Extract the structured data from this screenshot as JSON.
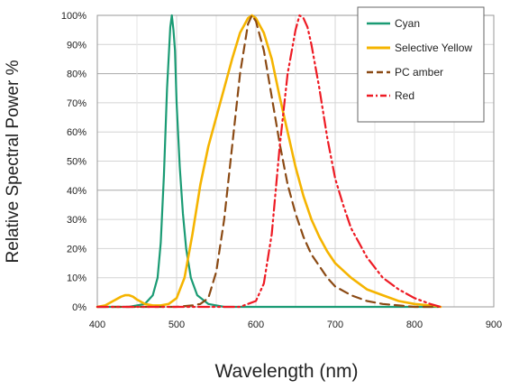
{
  "chart_data": {
    "type": "line",
    "xlabel": "Wavelength (nm)",
    "ylabel": "Relative Spectral Power %",
    "xlim": [
      400,
      900
    ],
    "ylim": [
      0,
      100
    ],
    "xticks": [
      400,
      500,
      600,
      700,
      800,
      900
    ],
    "yticks": [
      0,
      10,
      20,
      30,
      40,
      50,
      60,
      70,
      80,
      90,
      100
    ],
    "y_tick_format": "percent",
    "grid": true,
    "legend_position": "top-right",
    "series": [
      {
        "name": "Cyan",
        "color": "#1a9b74",
        "dash": "solid",
        "x": [
          400,
          440,
          460,
          470,
          476,
          480,
          484,
          488,
          492,
          494,
          496,
          498,
          500,
          504,
          508,
          512,
          518,
          526,
          540,
          560,
          600,
          700,
          830
        ],
        "y": [
          0,
          0,
          1,
          4,
          10,
          22,
          45,
          75,
          96,
          100,
          95,
          88,
          70,
          48,
          32,
          20,
          10,
          4,
          1,
          0,
          0,
          0,
          0
        ]
      },
      {
        "name": "Selective Yellow",
        "color": "#f5b400",
        "dash": "solid",
        "x": [
          400,
          410,
          420,
          430,
          435,
          440,
          445,
          450,
          460,
          470,
          480,
          490,
          500,
          510,
          520,
          530,
          540,
          550,
          560,
          570,
          580,
          590,
          595,
          600,
          610,
          620,
          630,
          640,
          650,
          660,
          670,
          680,
          690,
          700,
          720,
          740,
          760,
          780,
          800,
          820,
          833
        ],
        "y": [
          0,
          0.5,
          2,
          3.5,
          4,
          4,
          3.5,
          2.5,
          1,
          0.5,
          0.5,
          1,
          3,
          10,
          25,
          42,
          55,
          65,
          75,
          85,
          94,
          99,
          100,
          99,
          94,
          85,
          72,
          60,
          48,
          38,
          30,
          24,
          19,
          15,
          10,
          6,
          4,
          2,
          1,
          0.5,
          0
        ]
      },
      {
        "name": "PC amber",
        "color": "#8b4a14",
        "dash": "long",
        "x": [
          400,
          500,
          520,
          530,
          540,
          550,
          560,
          570,
          580,
          590,
          595,
          600,
          610,
          620,
          630,
          640,
          650,
          660,
          670,
          680,
          690,
          700,
          720,
          740,
          760,
          780,
          800,
          830
        ],
        "y": [
          0,
          0,
          0.5,
          1,
          3,
          12,
          30,
          55,
          80,
          97,
          100,
          98,
          88,
          72,
          56,
          42,
          32,
          24,
          18,
          14,
          10,
          7,
          4,
          2,
          1,
          0.5,
          0,
          0
        ]
      },
      {
        "name": "Red",
        "color": "#ee1b24",
        "dash": "dashdotdot",
        "x": [
          400,
          580,
          600,
          610,
          620,
          630,
          640,
          650,
          655,
          660,
          665,
          670,
          680,
          690,
          700,
          710,
          720,
          740,
          760,
          780,
          800,
          820,
          833
        ],
        "y": [
          0,
          0,
          2,
          8,
          25,
          55,
          80,
          95,
          100,
          99,
          96,
          90,
          75,
          58,
          44,
          35,
          27,
          17,
          10,
          6,
          3,
          1,
          0
        ]
      }
    ]
  }
}
